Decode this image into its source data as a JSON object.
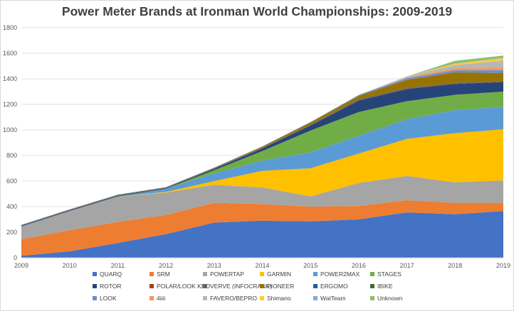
{
  "chart_data": {
    "type": "area",
    "stacked": true,
    "title": "Power Meter Brands at Ironman World Championships: 2009-2019",
    "x": [
      "2009",
      "2010",
      "2011",
      "2012",
      "2013",
      "2014",
      "2015",
      "2016",
      "2017",
      "2018",
      "2019"
    ],
    "ylim": [
      0,
      1800
    ],
    "yticks": [
      0,
      200,
      400,
      600,
      800,
      1000,
      1200,
      1400,
      1600,
      1800
    ],
    "grid": true,
    "legend_position": "bottom",
    "series": [
      {
        "name": "QUARQ",
        "color": "#4472C4",
        "values": [
          15,
          50,
          115,
          185,
          275,
          290,
          285,
          300,
          355,
          340,
          365
        ]
      },
      {
        "name": "SRM",
        "color": "#ED7D31",
        "values": [
          130,
          165,
          165,
          150,
          155,
          130,
          115,
          105,
          95,
          90,
          65
        ]
      },
      {
        "name": "POWERTAP",
        "color": "#A5A5A5",
        "values": [
          100,
          150,
          200,
          175,
          140,
          130,
          80,
          180,
          190,
          160,
          175
        ]
      },
      {
        "name": "GARMIN",
        "color": "#FFC000",
        "values": [
          0,
          0,
          0,
          5,
          30,
          130,
          220,
          230,
          290,
          385,
          400
        ]
      },
      {
        "name": "POWER2MAX",
        "color": "#5B9BD5",
        "values": [
          0,
          0,
          0,
          25,
          60,
          80,
          125,
          140,
          155,
          180,
          175
        ]
      },
      {
        "name": "STAGES",
        "color": "#70AD47",
        "values": [
          0,
          0,
          0,
          0,
          25,
          75,
          170,
          185,
          140,
          120,
          120
        ]
      },
      {
        "name": "ROTOR",
        "color": "#264478",
        "values": [
          5,
          5,
          5,
          5,
          10,
          20,
          40,
          90,
          95,
          85,
          75
        ]
      },
      {
        "name": "POLAR/LOOK KEO",
        "color": "#9E480E",
        "values": [
          2,
          3,
          3,
          3,
          3,
          3,
          3,
          3,
          3,
          3,
          3
        ]
      },
      {
        "name": "VERVE (INFOCRANK)",
        "color": "#636363",
        "values": [
          0,
          0,
          0,
          0,
          3,
          5,
          5,
          8,
          8,
          7,
          6
        ]
      },
      {
        "name": "PIONEER",
        "color": "#997300",
        "values": [
          0,
          0,
          0,
          0,
          0,
          5,
          15,
          25,
          60,
          80,
          60
        ]
      },
      {
        "name": "ERGOMO",
        "color": "#255E91",
        "values": [
          3,
          3,
          3,
          2,
          2,
          1,
          1,
          1,
          1,
          1,
          1
        ]
      },
      {
        "name": "IBIKE",
        "color": "#43682B",
        "values": [
          2,
          2,
          2,
          2,
          2,
          2,
          2,
          2,
          2,
          2,
          2
        ]
      },
      {
        "name": "LOOK",
        "color": "#698ED0",
        "values": [
          0,
          0,
          0,
          0,
          0,
          0,
          0,
          5,
          10,
          15,
          20
        ]
      },
      {
        "name": "4iiii",
        "color": "#F1975A",
        "values": [
          0,
          0,
          0,
          0,
          0,
          0,
          0,
          0,
          5,
          15,
          20
        ]
      },
      {
        "name": "FAVERO/BEPRO",
        "color": "#B7B7B7",
        "values": [
          0,
          0,
          0,
          0,
          0,
          0,
          0,
          0,
          10,
          25,
          55
        ]
      },
      {
        "name": "Shimano",
        "color": "#FFCD33",
        "values": [
          0,
          0,
          0,
          0,
          0,
          0,
          0,
          0,
          0,
          10,
          20
        ]
      },
      {
        "name": "WatTeam",
        "color": "#7CAFDD",
        "values": [
          0,
          0,
          0,
          0,
          0,
          0,
          0,
          0,
          0,
          3,
          5
        ]
      },
      {
        "name": "Unknown",
        "color": "#8CC168",
        "values": [
          0,
          0,
          0,
          0,
          0,
          0,
          0,
          0,
          0,
          20,
          15
        ]
      }
    ]
  }
}
